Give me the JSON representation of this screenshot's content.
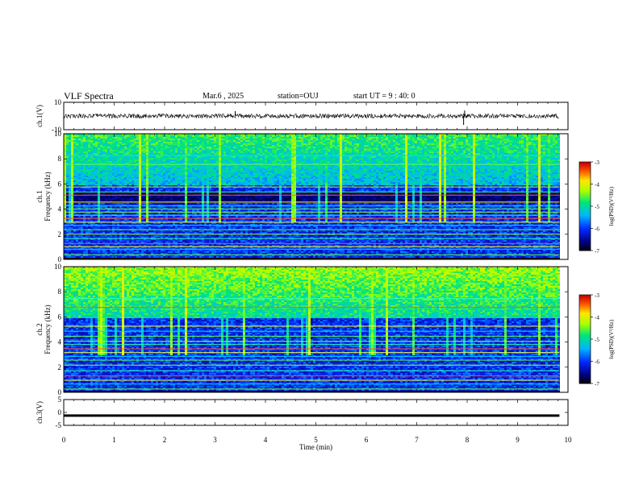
{
  "header": {
    "title": "VLF Spectra",
    "date": "Mar.6 , 2025",
    "station": "station=OUJ",
    "start": "start UT = 9 : 40: 0"
  },
  "chart_data": [
    {
      "type": "line",
      "panel": "ch1-waveform",
      "ylabel": "ch.1(V)",
      "ylim": [
        -10,
        10
      ],
      "yticks": [
        "10",
        "-10"
      ],
      "xlim": [
        0,
        10
      ],
      "series": [
        {
          "values_note_free": true,
          "baseline": 0,
          "noise_amplitude": 1.6,
          "spikes": [
            {
              "x": 3.4,
              "y": 3.5
            },
            {
              "x": 7.93,
              "y": -6.5
            },
            {
              "x": 7.95,
              "y": 4
            }
          ]
        }
      ]
    },
    {
      "type": "heatmap",
      "panel": "ch1-spectrogram",
      "ylabel": "ch.1 Frequency (kHz)",
      "ylim": [
        0,
        10
      ],
      "yticks": [
        "0",
        "2",
        "4",
        "6",
        "8",
        "10"
      ],
      "xlim": [
        0,
        10
      ],
      "data_extent_x": [
        0,
        9.83
      ],
      "colorbar": {
        "label": "log(PSD)(V²/Hz)",
        "range": [
          -7,
          -3
        ],
        "ticks": [
          "-3",
          "-4",
          "-5",
          "-6",
          "-7"
        ]
      },
      "quiet_band_khz": [
        4.5,
        5.5
      ],
      "lines_khz": [
        0.4,
        0.85,
        1.05,
        1.3,
        1.7,
        2.05,
        2.4,
        2.75,
        3.0,
        3.3,
        3.55,
        3.8,
        4.05,
        4.3,
        4.6,
        5.15,
        5.4,
        5.8,
        7.6,
        8.3
      ]
    },
    {
      "type": "heatmap",
      "panel": "ch2-spectrogram",
      "ylabel": "ch.2 Frequency (kHz)",
      "ylim": [
        0,
        10
      ],
      "yticks": [
        "0",
        "2",
        "4",
        "6",
        "8",
        "10"
      ],
      "xlim": [
        0,
        10
      ],
      "data_extent_x": [
        0,
        9.83
      ],
      "colorbar": {
        "label": "log(PSD)(V²/Hz)",
        "range": [
          -7,
          -3
        ],
        "ticks": [
          "-3",
          "-4",
          "-5",
          "-6",
          "-7"
        ]
      },
      "lines_khz": [
        0.3,
        0.7,
        1.0,
        1.35,
        1.75,
        2.2,
        2.6,
        2.9,
        3.2,
        3.5,
        3.85,
        4.1,
        4.5,
        4.9,
        5.3,
        6.8,
        7.5
      ]
    },
    {
      "type": "line",
      "panel": "ch3-waveform",
      "ylabel": "ch.3(V)",
      "ylim": [
        -5,
        5
      ],
      "yticks": [
        "5",
        "0",
        "-5"
      ],
      "xlim": [
        0,
        10
      ],
      "series": [
        {
          "baseline": -1,
          "thickness_v": 0.5
        }
      ]
    }
  ],
  "xaxis": {
    "label": "Time (min)",
    "ticks": [
      "0",
      "1",
      "2",
      "3",
      "4",
      "5",
      "6",
      "7",
      "8",
      "9",
      "10"
    ]
  }
}
